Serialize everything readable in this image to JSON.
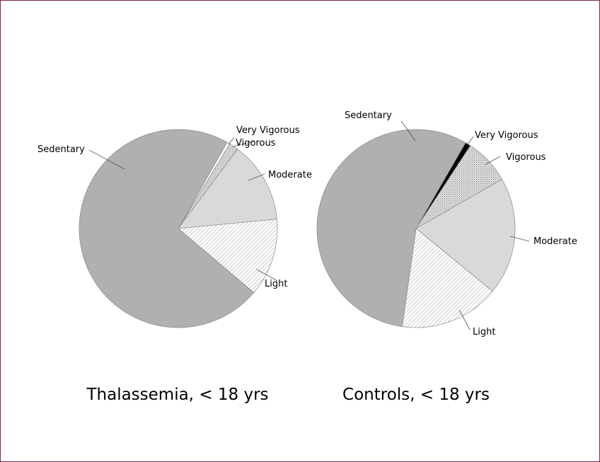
{
  "chart_data": [
    {
      "type": "pie",
      "title": "Thalassemia, < 18 yrs",
      "start": "Very Vigorous at about 30° clockwise from top",
      "slices": [
        {
          "label": "Very Vigorous",
          "value": 0.5,
          "color": "#ffffff"
        },
        {
          "label": "Vigorous",
          "value": 1.5,
          "color": "crosshatch"
        },
        {
          "label": "Moderate",
          "value": 13.3,
          "color": "#d9d9d9"
        },
        {
          "label": "Light",
          "value": 12.7,
          "color": "diagonal-hatch"
        },
        {
          "label": "Sedentary",
          "value": 72.0,
          "color": "#b0b0b0"
        }
      ]
    },
    {
      "type": "pie",
      "title": "Controls, < 18 yrs",
      "slices": [
        {
          "label": "Very Vigorous",
          "value": 0.9,
          "color": "#000000"
        },
        {
          "label": "Vigorous",
          "value": 7.5,
          "color": "crosshatch"
        },
        {
          "label": "Moderate",
          "value": 19.2,
          "color": "#d9d9d9"
        },
        {
          "label": "Light",
          "value": 16.3,
          "color": "diagonal-hatch"
        },
        {
          "label": "Sedentary",
          "value": 56.1,
          "color": "#b0b0b0"
        }
      ]
    }
  ],
  "frame_color": "#7a2a4c"
}
